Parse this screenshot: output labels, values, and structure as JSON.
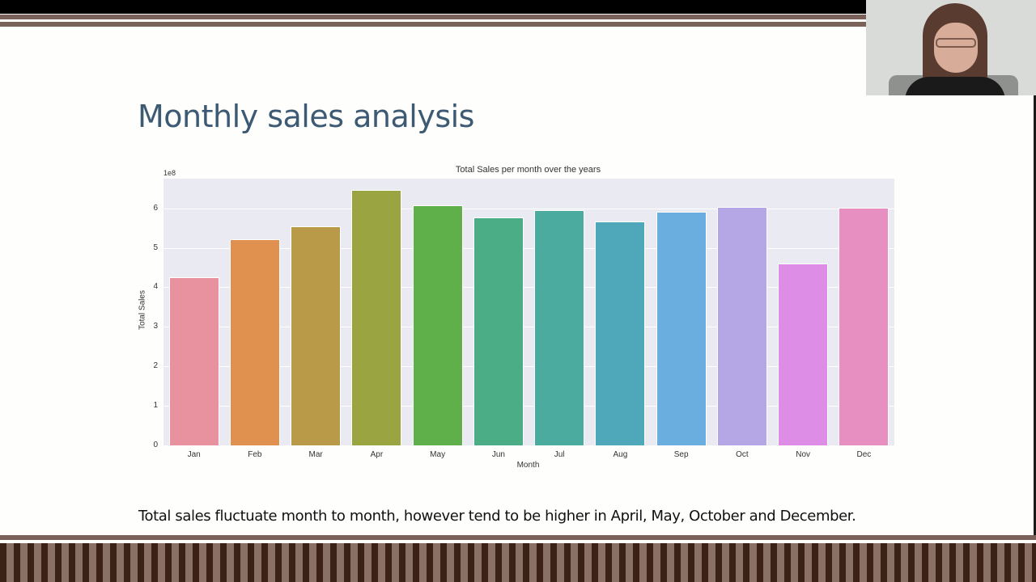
{
  "slide": {
    "title": "Monthly sales analysis",
    "caption": "Total sales fluctuate month to month, however tend to be higher in April, May, October and December."
  },
  "webcam": {
    "label": "presenter-video"
  },
  "theme": {
    "stripe_color": "#7a625b",
    "title_color": "#3c5a73",
    "plot_bg": "#eaeaf2"
  },
  "chart_data": {
    "type": "bar",
    "title": "Total Sales per month over the years",
    "xlabel": "Month",
    "ylabel": "Total Sales",
    "y_offset_label": "1e8",
    "ylim": [
      0,
      6.75
    ],
    "yticks": [
      "0",
      "1",
      "2",
      "3",
      "4",
      "5",
      "6"
    ],
    "grid": true,
    "categories": [
      "Jan",
      "Feb",
      "Mar",
      "Apr",
      "May",
      "Jun",
      "Jul",
      "Aug",
      "Sep",
      "Oct",
      "Nov",
      "Dec"
    ],
    "values": [
      4.23,
      5.2,
      5.53,
      6.45,
      6.06,
      5.75,
      5.94,
      5.65,
      5.9,
      6.02,
      4.58,
      6.0
    ],
    "units": "x1e8",
    "colors": [
      "#e8919f",
      "#e0904f",
      "#b89a48",
      "#9aa441",
      "#5fb04b",
      "#4aad86",
      "#4aab9e",
      "#4ea8b9",
      "#6aaedf",
      "#b5a6e6",
      "#de8de6",
      "#e68fc0"
    ]
  }
}
